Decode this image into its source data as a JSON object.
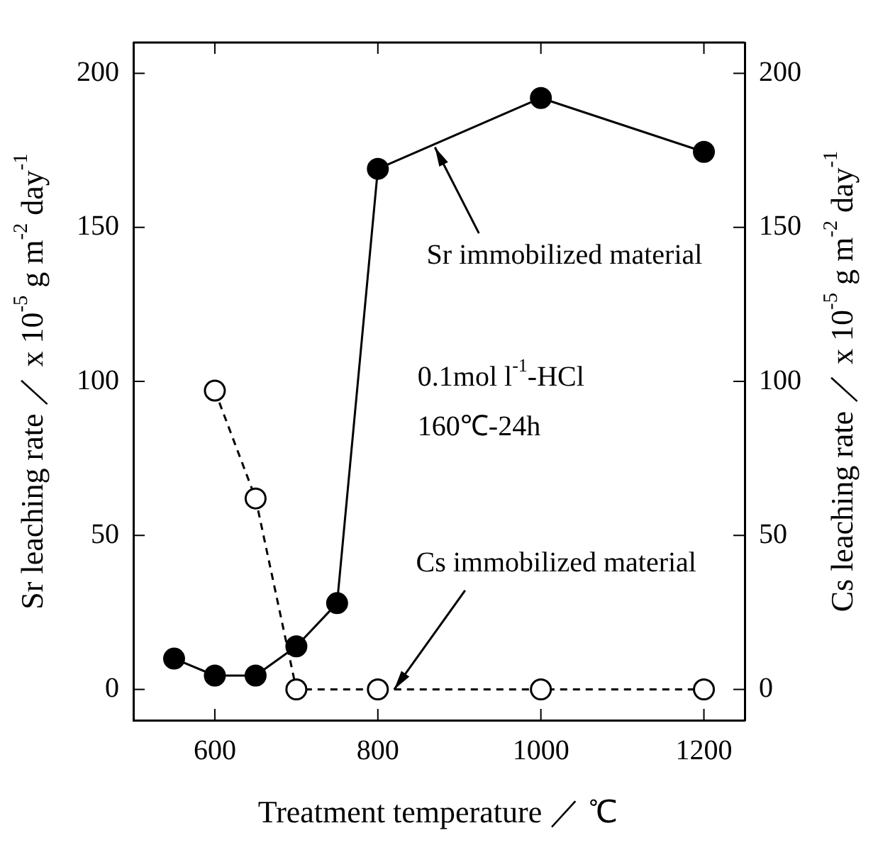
{
  "chart_data": {
    "type": "line",
    "xlabel": "Treatment temperature ／ ℃",
    "ylabel": "Sr leaching rate ／ x 10$^{-5}$ g m$^{-2}$ day$^{-1}$",
    "y2label": "Cs leaching rate ／ x 10$^{-5}$ g m$^{-2}$ day$^{-1}$",
    "series": [
      {
        "color": "#000000",
        "x": [
          550,
          600,
          650,
          700,
          750,
          800,
          1000,
          1200
        ],
        "values": [
          10,
          4.5,
          4.5,
          14,
          28,
          169,
          192,
          174.5
        ],
        "marker": "circle",
        "line_style": "solid"
      },
      {
        "color": "#000000",
        "x": [
          600,
          650,
          700,
          800,
          1000,
          1200
        ],
        "values": [
          97,
          62,
          0,
          0,
          0,
          0
        ],
        "marker": "circle",
        "line_style": "dashed",
        "axis": "y2"
      }
    ],
    "xlim": [
      500,
      1250
    ],
    "xticks": [
      600,
      800,
      1000,
      1200
    ],
    "ylim": [
      -10,
      210
    ],
    "yticks": [
      0,
      50,
      100,
      150,
      200
    ],
    "y2lim": [
      -10,
      210
    ],
    "y2ticks": [
      0,
      50,
      100,
      150,
      200
    ],
    "grid": false,
    "legend": false,
    "annotations": [
      {
        "text": "Sr immobilized material",
        "x": 870,
        "y": 176
      },
      {
        "text": "Cs immobilized material",
        "x": 820,
        "y": 0
      },
      "0.1mol l$^{-1}$-HCl",
      "160℃-24h"
    ]
  }
}
